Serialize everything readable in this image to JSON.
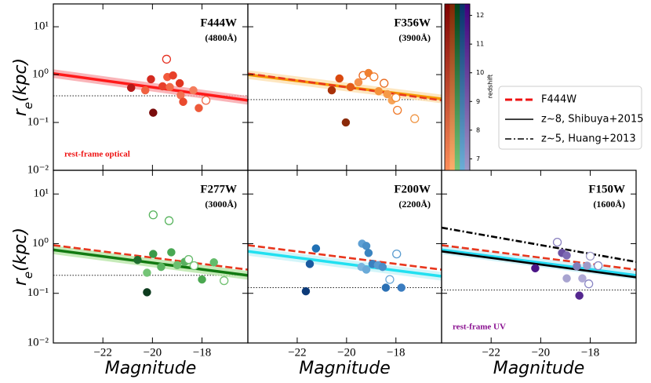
{
  "chart_data": [
    {
      "type": "scatter",
      "title": "F444W",
      "subtitle": "(4800Å)",
      "log_y": true,
      "xlim": [
        -24,
        -16.15
      ],
      "ylim": [
        0.01,
        30
      ],
      "xticks": [
        -22,
        -20,
        -18
      ],
      "yticks": [
        {
          "value": 0.01,
          "label": "10⁻²"
        },
        {
          "value": 0.1,
          "label": "10⁻¹"
        },
        {
          "value": 1,
          "label": "10⁰"
        },
        {
          "value": 10,
          "label": "10¹"
        }
      ],
      "ylabel": [
        "r",
        "e",
        "(kpc)"
      ],
      "annotation": {
        "text": "rest-frame optical",
        "color": "#ee1111"
      },
      "hline": 0.36,
      "lines": [
        {
          "x": [
            -24,
            -16.15
          ],
          "y": [
            1.05,
            0.29
          ],
          "color": "#ff1a1a",
          "dash": "solid",
          "band_color": "#f7a3a8"
        }
      ],
      "points": {
        "x": [
          -20.86,
          -20.29,
          -20.06,
          -19.97,
          -19.59,
          -19.4,
          -19.17,
          -19.3,
          -18.9,
          -18.86,
          -18.76,
          -18.35,
          -18.13,
          -19.43,
          -17.84
        ],
        "y": [
          0.53,
          0.47,
          0.8,
          0.16,
          0.57,
          0.89,
          0.96,
          0.55,
          0.66,
          0.37,
          0.27,
          0.47,
          0.2,
          2.1,
          0.29
        ],
        "colors": [
          "#b41818",
          "#f06040",
          "#d42a20",
          "#7a0c0c",
          "#e8402a",
          "#f25a3c",
          "#e8402a",
          "#f36a48",
          "#e0341f",
          "#f27052",
          "#ea4a2e",
          "#f47c5c",
          "#ee5a3a",
          "#e53020",
          "#f06a4a"
        ],
        "open": [
          false,
          false,
          false,
          false,
          false,
          false,
          false,
          false,
          false,
          false,
          false,
          false,
          false,
          true,
          true
        ]
      }
    },
    {
      "type": "scatter",
      "title": "F356W",
      "subtitle": "(3900Å)",
      "log_y": true,
      "xlim": [
        -24,
        -16.15
      ],
      "ylim": [
        0.01,
        30
      ],
      "xticks": [
        -22,
        -20,
        -18
      ],
      "yticks": [
        0.01,
        0.1,
        1,
        10
      ],
      "hline": 0.3,
      "lines": [
        {
          "x": [
            -24,
            -16.15
          ],
          "y": [
            1.0,
            0.31
          ],
          "color": "#f59a00",
          "dash": "solid",
          "band_color": "#fde0b0"
        },
        {
          "x": [
            -24,
            -16.15
          ],
          "y": [
            1.05,
            0.29
          ],
          "color": "#e8371e",
          "dash": "dashed"
        }
      ],
      "points": {
        "x": [
          -20.6,
          -20.29,
          -20.03,
          -19.33,
          -19.11,
          -18.89,
          -18.7,
          -18.48,
          -18.35,
          -18.16,
          -18.0,
          -17.94,
          -17.24,
          -19.52,
          -19.84
        ],
        "y": [
          0.47,
          0.83,
          0.1,
          0.96,
          1.08,
          0.9,
          0.45,
          0.66,
          0.39,
          0.29,
          0.33,
          0.18,
          0.12,
          0.69,
          0.55
        ],
        "colors": [
          "#a83008",
          "#d9480f",
          "#8b2a0a",
          "#e8641c",
          "#f08030",
          "#f07a2a",
          "#f5923a",
          "#e86a20",
          "#f59a48",
          "#f7a458",
          "#f08a30",
          "#f07a2a",
          "#f09848",
          "#f5904a",
          "#e25a18"
        ],
        "open": [
          false,
          false,
          false,
          true,
          false,
          true,
          false,
          true,
          false,
          false,
          true,
          true,
          true,
          false,
          false
        ]
      }
    },
    {
      "type": "scatter",
      "title": "F277W",
      "subtitle": "(3000Å)",
      "log_y": true,
      "xlim": [
        -24,
        -16.15
      ],
      "ylim": [
        0.01,
        30
      ],
      "xticks": [
        {
          "value": -22,
          "label": "−22"
        },
        {
          "value": -20,
          "label": "−20"
        },
        {
          "value": -18,
          "label": "−18"
        }
      ],
      "yticks": [
        {
          "value": 0.01,
          "label": "10⁻²"
        },
        {
          "value": 0.1,
          "label": "10⁻¹"
        },
        {
          "value": 1,
          "label": "10⁰"
        },
        {
          "value": 10,
          "label": "10¹"
        }
      ],
      "ylabel": [
        "r",
        "e",
        "(kpc)"
      ],
      "xlabel": "Magnitude",
      "hline": 0.23,
      "lines": [
        {
          "x": [
            -24,
            -16.15
          ],
          "y": [
            0.75,
            0.23
          ],
          "color": "#127a12",
          "dash": "solid",
          "band_color": "#b8e6a8"
        },
        {
          "x": [
            -24,
            -16.15
          ],
          "y": [
            0.93,
            0.3
          ],
          "color": "#e8371e",
          "dash": "dashed"
        }
      ],
      "points": {
        "x": [
          -20.6,
          -20.22,
          -19.97,
          -19.65,
          -19.24,
          -19.0,
          -18.7,
          -18.54,
          -18.32,
          -18.0,
          -17.52,
          -17.11,
          -20.22,
          -19.97,
          -19.33
        ],
        "y": [
          0.47,
          0.26,
          0.62,
          0.34,
          0.67,
          0.37,
          0.43,
          0.48,
          0.36,
          0.19,
          0.42,
          0.18,
          0.105,
          3.8,
          2.9
        ],
        "colors": [
          "#1e6e2e",
          "#74c476",
          "#3a9a48",
          "#5ab560",
          "#48a853",
          "#6cbf6e",
          "#58b060",
          "#62b868",
          "#74c476",
          "#4aa850",
          "#64bb6a",
          "#70c070",
          "#0d3b1e",
          "#58b45e",
          "#58b45e"
        ],
        "open": [
          false,
          false,
          false,
          false,
          false,
          false,
          false,
          true,
          true,
          false,
          false,
          true,
          false,
          true,
          true
        ]
      }
    },
    {
      "type": "scatter",
      "title": "F200W",
      "subtitle": "(2200Å)",
      "log_y": true,
      "xlim": [
        -24,
        -16.15
      ],
      "ylim": [
        0.01,
        30
      ],
      "xticks": [
        {
          "value": -22,
          "label": "−22"
        },
        {
          "value": -20,
          "label": "−20"
        },
        {
          "value": -18,
          "label": "−18"
        }
      ],
      "yticks": [
        0.01,
        0.1,
        1,
        10
      ],
      "xlabel": "Magnitude",
      "hline": 0.13,
      "lines": [
        {
          "x": [
            -24,
            -16.15
          ],
          "y": [
            0.7,
            0.22
          ],
          "color": "#22e0f0",
          "dash": "solid",
          "band_color": "#c8f2f8"
        },
        {
          "x": [
            -24,
            -16.15
          ],
          "y": [
            0.93,
            0.3
          ],
          "color": "#e8371e",
          "dash": "dashed"
        }
      ],
      "points": {
        "x": [
          -21.65,
          -21.49,
          -21.24,
          -19.37,
          -19.2,
          -19.11,
          -19.4,
          -19.2,
          -18.95,
          -18.73,
          -18.54,
          -18.25,
          -17.97,
          -17.78,
          -18.41
        ],
        "y": [
          0.11,
          0.39,
          0.8,
          1.0,
          0.9,
          0.65,
          0.34,
          0.3,
          0.39,
          0.37,
          0.34,
          0.19,
          0.62,
          0.13,
          0.13
        ],
        "colors": [
          "#0c3a78",
          "#1a5aa0",
          "#2070b4",
          "#5ea0d4",
          "#4a90c8",
          "#3a84c0",
          "#7ab4de",
          "#6aaad8",
          "#3a80c0",
          "#5a9cd0",
          "#4a8ec8",
          "#6aa8d8",
          "#5a9cd0",
          "#3a7cc0",
          "#2a70b4"
        ],
        "open": [
          false,
          false,
          false,
          false,
          false,
          false,
          false,
          false,
          false,
          false,
          false,
          true,
          true,
          false,
          false
        ]
      }
    },
    {
      "type": "scatter",
      "title": "F150W",
      "subtitle": "(1600Å)",
      "log_y": true,
      "xlim": [
        -24,
        -16.15
      ],
      "ylim": [
        0.01,
        30
      ],
      "xticks": [
        {
          "value": -22,
          "label": "−22"
        },
        {
          "value": -20,
          "label": "−20"
        },
        {
          "value": -18,
          "label": "−18"
        }
      ],
      "yticks": [
        0.01,
        0.1,
        1,
        10
      ],
      "xlabel": "Magnitude",
      "annotation": {
        "text": "rest-frame UV",
        "color": "#8a1090"
      },
      "hline": 0.117,
      "lines": [
        {
          "x": [
            -24,
            -16.15
          ],
          "y": [
            0.75,
            0.23
          ],
          "color": "#22d8f0",
          "dash": "solid",
          "band_color": "#c8f0f8"
        },
        {
          "x": [
            -24,
            -16.15
          ],
          "y": [
            2.1,
            0.43
          ],
          "color": "#000000",
          "dash": "dashdot"
        },
        {
          "x": [
            -24,
            -16.15
          ],
          "y": [
            0.93,
            0.3
          ],
          "color": "#e8371e",
          "dash": "dashed"
        },
        {
          "x": [
            -24,
            -16.15
          ],
          "y": [
            0.7,
            0.21
          ],
          "color": "#000000",
          "dash": "solid"
        }
      ],
      "points": {
        "x": [
          -20.22,
          -19.33,
          -19.14,
          -18.95,
          -18.54,
          -18.32,
          -18.13,
          -18.06,
          -18.0,
          -17.68,
          -18.44,
          -18.95
        ],
        "y": [
          0.32,
          1.07,
          0.65,
          0.58,
          0.35,
          0.2,
          0.36,
          0.155,
          0.56,
          0.36,
          0.09,
          0.2
        ],
        "colors": [
          "#4a1486",
          "#8a80c0",
          "#6a51a3",
          "#7d6bb4",
          "#807dba",
          "#b0aad6",
          "#9e9ac8",
          "#8a86c4",
          "#9e9ac8",
          "#8a86c4",
          "#54278f",
          "#a8a4d0"
        ],
        "open": [
          false,
          true,
          false,
          false,
          false,
          false,
          false,
          true,
          true,
          true,
          false,
          false
        ]
      }
    }
  ],
  "colorbar": {
    "label": "redshift",
    "clim": [
      6.6,
      12.4
    ],
    "ticks": [
      7,
      8,
      9,
      10,
      11,
      12
    ],
    "stripes": [
      [
        "#fc8d59",
        "#7f0000"
      ],
      [
        "#fdae6b",
        "#7f2704"
      ],
      [
        "#74c476",
        "#00441b"
      ],
      [
        "#6baed6",
        "#08306b"
      ],
      [
        "#9e9ac8",
        "#3f007d"
      ]
    ]
  },
  "legend": [
    {
      "name": "F444W",
      "color": "#ee1111",
      "dash": "dashed"
    },
    {
      "name": "z~8, Shibuya+2015",
      "color": "#000000",
      "dash": "solid"
    },
    {
      "name": "z~5, Huang+2013",
      "color": "#000000",
      "dash": "dashdot"
    }
  ]
}
